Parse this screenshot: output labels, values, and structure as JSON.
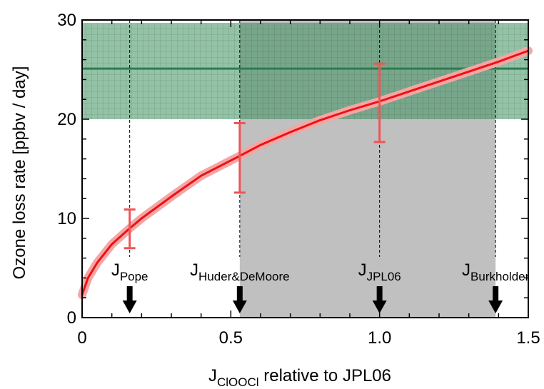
{
  "chart_data": {
    "type": "line",
    "title": "",
    "xlabel": "J",
    "xlabel_subscript": "ClOOCl",
    "xlabel_suffix": " relative to JPL06",
    "ylabel": "Ozone loss rate [ppbv / day]",
    "xlim": [
      0,
      1.5
    ],
    "ylim": [
      0,
      30
    ],
    "x_ticks": [
      {
        "value": 0,
        "label": "0"
      },
      {
        "value": 0.5,
        "label": "0.5"
      },
      {
        "value": 1.0,
        "label": "1.0"
      },
      {
        "value": 1.5,
        "label": "1.5"
      }
    ],
    "y_ticks": [
      {
        "value": 0,
        "label": "0"
      },
      {
        "value": 10,
        "label": "10"
      },
      {
        "value": 20,
        "label": "20"
      },
      {
        "value": 30,
        "label": "30"
      }
    ],
    "grid": false,
    "observed_band": {
      "y_min": 20,
      "y_max": 29.7,
      "central": 25.1,
      "color": "#3a8f5c"
    },
    "shaded_x_range": {
      "x_min": 0.53,
      "x_max": 1.39,
      "color": "#c0c0c0"
    },
    "series": [
      {
        "color": "#ee1111",
        "uncertainty_color": "#f4a6a6",
        "x": [
          0,
          0.02,
          0.05,
          0.1,
          0.16,
          0.2,
          0.3,
          0.4,
          0.53,
          0.6,
          0.7,
          0.8,
          0.9,
          1.0,
          1.1,
          1.2,
          1.3,
          1.4,
          1.5
        ],
        "y": [
          2.3,
          4.0,
          5.5,
          7.4,
          9.0,
          10.0,
          12.2,
          14.3,
          16.3,
          17.4,
          18.7,
          19.9,
          20.9,
          21.8,
          22.8,
          23.8,
          24.8,
          25.8,
          26.9
        ]
      }
    ],
    "error_bars": [
      {
        "x": 0.16,
        "y": 9.0,
        "low": 7.0,
        "high": 10.9
      },
      {
        "x": 0.53,
        "y": 16.3,
        "low": 12.6,
        "high": 19.6
      },
      {
        "x": 1.0,
        "y": 21.7,
        "low": 17.7,
        "high": 25.6
      }
    ],
    "annotations": [
      {
        "x": 0.16,
        "label": "J",
        "sub": "Pope"
      },
      {
        "x": 0.53,
        "label": "J",
        "sub": "Huder&DeMoore"
      },
      {
        "x": 1.0,
        "label": "J",
        "sub": "JPL06"
      },
      {
        "x": 1.39,
        "label": "J",
        "sub": "Burkholder"
      }
    ]
  }
}
